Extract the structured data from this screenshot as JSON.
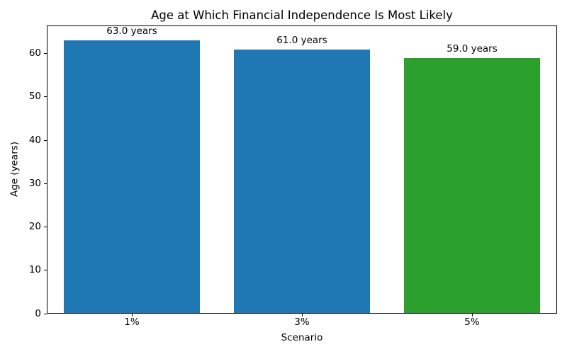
{
  "chart_data": {
    "type": "bar",
    "title": "Age at Which Financial Independence Is Most Likely",
    "xlabel": "Scenario",
    "ylabel": "Age (years)",
    "categories": [
      "1%",
      "3%",
      "5%"
    ],
    "values": [
      63.0,
      61.0,
      59.0
    ],
    "bar_labels": [
      "63.0 years",
      "61.0 years",
      "59.0 years"
    ],
    "bar_colors": [
      "#1f77b4",
      "#1f77b4",
      "#2ca02c"
    ],
    "ylim": [
      0,
      66.5
    ],
    "yticks": [
      0,
      10,
      20,
      30,
      40,
      50,
      60
    ],
    "grid": false,
    "legend_position": "none",
    "background_color": "#ffffff",
    "text_color": "#000000",
    "bar_width_fraction": 0.8
  }
}
